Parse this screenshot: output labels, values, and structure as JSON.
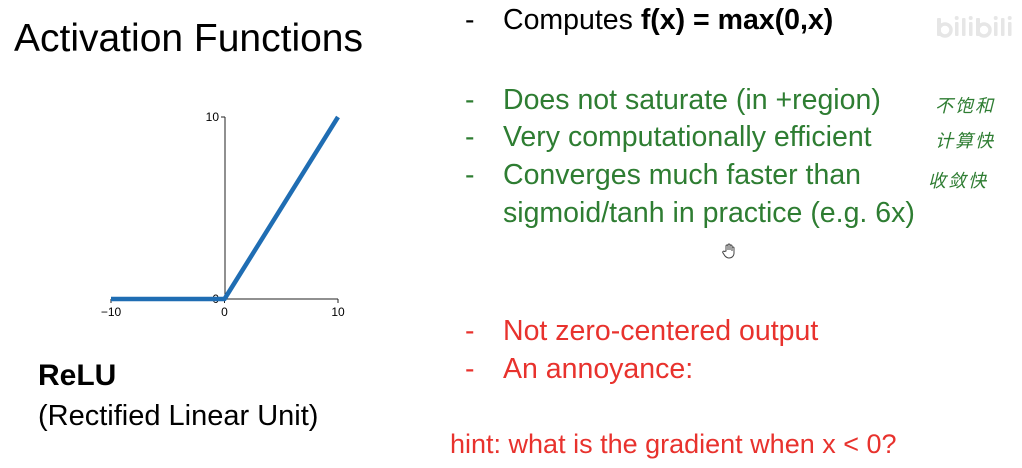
{
  "slide": {
    "title": "Activation Functions",
    "caption_name": "ReLU",
    "caption_full": "(Rectified Linear Unit)"
  },
  "bullets": {
    "dash": "-",
    "computes_prefix": "Computes ",
    "computes_formula": "f(x) = max(0,x)",
    "green": [
      "Does not saturate (in +region)",
      "Very computationally efficient",
      "Converges much faster than",
      "sigmoid/tanh in practice (e.g. 6x)"
    ],
    "red": [
      "Not zero-centered output",
      "An annoyance:"
    ],
    "hint": "hint: what is the gradient when x < 0?"
  },
  "notes": [
    "不饱和",
    "计算快",
    "收敛快"
  ],
  "watermark": "bilibili",
  "colors": {
    "green": "#2e7d32",
    "red": "#e8322d",
    "line": "#1f6db3"
  },
  "chart_data": {
    "type": "line",
    "title": "",
    "xlabel": "",
    "ylabel": "",
    "xlim": [
      -10,
      10
    ],
    "ylim": [
      0,
      10
    ],
    "xticks": [
      "−10",
      "0",
      "10"
    ],
    "yticks": [
      "0",
      "10"
    ],
    "grid": false,
    "series": [
      {
        "x": [
          -10,
          0,
          10
        ],
        "y": [
          0,
          0,
          10
        ]
      }
    ]
  }
}
